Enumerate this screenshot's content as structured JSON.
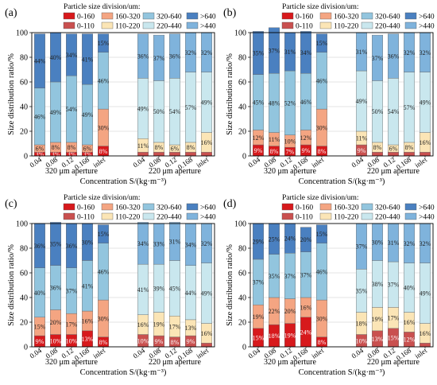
{
  "legend": {
    "title": "Particle size division/um:",
    "items": [
      {
        "label": "0-160",
        "color": "#d7191c"
      },
      {
        "label": "160-320",
        "color": "#f4a582"
      },
      {
        "label": "320-640",
        "color": "#92c5de"
      },
      {
        "label": ">640",
        "color": "#4a80c0"
      },
      {
        "label": "0-110",
        "color": "#c9504f"
      },
      {
        "label": "110-220",
        "color": "#fbe5b6"
      },
      {
        "label": "220-440",
        "color": "#c9e7ee"
      },
      {
        "label": ">440",
        "color": "#7fb3dc"
      }
    ]
  },
  "axis": {
    "ylabel": "Size distribution ratio/%",
    "xlabel": "Concentration S/(kg·m⁻³)",
    "yticks": [
      "0",
      "20",
      "40",
      "60",
      "80",
      "100"
    ],
    "group1_label": "320 μm aperture",
    "group2_label": "220 μm aperture"
  },
  "chart_data": [
    {
      "type": "bar",
      "stacked": true,
      "panel_label": "(a)",
      "ylim": [
        0,
        100
      ],
      "categories": [
        "0.04",
        "0.08",
        "0.12",
        "0.168",
        "inlet",
        "0.04",
        "0.08",
        "0.12",
        "0.168",
        "inlet"
      ],
      "groups": [
        "320 μm aperture",
        "220 μm aperture"
      ],
      "series": [
        {
          "name": "0-160",
          "color": "#d7191c",
          "values": [
            3,
            3,
            3,
            3,
            8,
            null,
            null,
            null,
            null,
            null
          ],
          "labels": [
            "3%",
            "3%",
            "3%",
            "3%",
            "8%",
            "",
            "",
            "",
            "",
            ""
          ]
        },
        {
          "name": "160-320",
          "color": "#f4a582",
          "values": [
            6,
            8,
            8,
            6,
            30,
            null,
            null,
            null,
            null,
            null
          ],
          "labels": [
            "6%",
            "8%",
            "8%",
            "6%",
            "30%",
            "",
            "",
            "",
            "",
            ""
          ]
        },
        {
          "name": "320-640",
          "color": "#92c5de",
          "values": [
            46,
            49,
            54,
            49,
            46,
            null,
            null,
            null,
            null,
            null
          ],
          "labels": [
            "46%",
            "49%",
            "54%",
            "49%",
            "46%",
            "",
            "",
            "",
            "",
            ""
          ]
        },
        {
          "name": ">640",
          "color": "#4a80c0",
          "values": [
            44,
            40,
            34,
            41,
            15,
            null,
            null,
            null,
            null,
            null
          ],
          "labels": [
            "44%",
            "40%",
            "34%",
            "41%",
            "15%",
            "",
            "",
            "",
            "",
            ""
          ]
        },
        {
          "name": "0-110",
          "color": "#c9504f",
          "values": [
            null,
            null,
            null,
            null,
            null,
            3,
            3,
            3,
            3,
            3
          ],
          "labels": [
            "",
            "",
            "",
            "",
            "",
            "",
            "",
            "",
            "",
            ""
          ]
        },
        {
          "name": "110-220",
          "color": "#fbe5b6",
          "values": [
            null,
            null,
            null,
            null,
            null,
            11,
            8,
            6,
            8,
            16
          ],
          "labels": [
            "",
            "",
            "",
            "",
            "",
            "11%",
            "8%",
            "6%",
            "8%",
            "16%"
          ]
        },
        {
          "name": "220-440",
          "color": "#c9e7ee",
          "values": [
            null,
            null,
            null,
            null,
            null,
            49,
            50,
            54,
            57,
            49
          ],
          "labels": [
            "",
            "",
            "",
            "",
            "",
            "49%",
            "50%",
            "54%",
            "57%",
            "49%"
          ]
        },
        {
          "name": ">440",
          "color": "#7fb3dc",
          "values": [
            null,
            null,
            null,
            null,
            null,
            36,
            37,
            36,
            32,
            32
          ],
          "labels": [
            "",
            "",
            "",
            "",
            "",
            "36%",
            "37%",
            "36%",
            "32%",
            "32%"
          ]
        }
      ]
    },
    {
      "type": "bar",
      "stacked": true,
      "panel_label": "(b)",
      "ylim": [
        0,
        100
      ],
      "categories": [
        "0.04",
        "0.08",
        "0.12",
        "0.168",
        "inlet",
        "0.04",
        "0.08",
        "0.12",
        "0.168",
        "inlet"
      ],
      "groups": [
        "320 μm aperture",
        "220 μm aperture"
      ],
      "series": [
        {
          "name": "0-160",
          "color": "#d7191c",
          "values": [
            9,
            8,
            7,
            9,
            8,
            null,
            null,
            null,
            null,
            null
          ],
          "labels": [
            "9%",
            "8%",
            "7%",
            "9%",
            "8%",
            "",
            "",
            "",
            "",
            ""
          ]
        },
        {
          "name": "160-320",
          "color": "#f4a582",
          "values": [
            12,
            11,
            10,
            12,
            30,
            null,
            null,
            null,
            null,
            null
          ],
          "labels": [
            "12%",
            "11%",
            "10%",
            "12%",
            "30%",
            "",
            "",
            "",
            "",
            ""
          ]
        },
        {
          "name": "320-640",
          "color": "#92c5de",
          "values": [
            45,
            48,
            52,
            46,
            46,
            null,
            null,
            null,
            null,
            null
          ],
          "labels": [
            "45%",
            "48%",
            "52%",
            "46%",
            "46%",
            "",
            "",
            "",
            "",
            ""
          ]
        },
        {
          "name": ">640",
          "color": "#4a80c0",
          "values": [
            35,
            37,
            31,
            34,
            15,
            null,
            null,
            null,
            null,
            null
          ],
          "labels": [
            "35%",
            "37%",
            "31%",
            "34%",
            "15%",
            "",
            "",
            "",
            "",
            ""
          ]
        },
        {
          "name": "0-110",
          "color": "#c9504f",
          "values": [
            null,
            null,
            null,
            null,
            null,
            9,
            3,
            3,
            3,
            3
          ],
          "labels": [
            "",
            "",
            "",
            "",
            "",
            "9%",
            "",
            "",
            "",
            ""
          ]
        },
        {
          "name": "110-220",
          "color": "#fbe5b6",
          "values": [
            null,
            null,
            null,
            null,
            null,
            11,
            8,
            6,
            8,
            16
          ],
          "labels": [
            "",
            "",
            "",
            "",
            "",
            "11%",
            "8%",
            "6%",
            "8%",
            "16%"
          ]
        },
        {
          "name": "220-440",
          "color": "#c9e7ee",
          "values": [
            null,
            null,
            null,
            null,
            null,
            49,
            50,
            54,
            57,
            49
          ],
          "labels": [
            "",
            "",
            "",
            "",
            "",
            "49%",
            "50%",
            "54%",
            "57%",
            "49%"
          ]
        },
        {
          "name": ">440",
          "color": "#7fb3dc",
          "values": [
            null,
            null,
            null,
            null,
            null,
            31,
            37,
            36,
            32,
            32
          ],
          "labels": [
            "",
            "",
            "",
            "",
            "",
            "31%",
            "37%",
            "36%",
            "32%",
            "32%"
          ]
        }
      ]
    },
    {
      "type": "bar",
      "stacked": true,
      "panel_label": "(c)",
      "ylim": [
        0,
        100
      ],
      "categories": [
        "0.04",
        "0.08",
        "0.12",
        "0.168",
        "inlet",
        "0.04",
        "0.08",
        "0.12",
        "0.168",
        "inlet"
      ],
      "groups": [
        "320 μm aperture",
        "220 μm aperture"
      ],
      "series": [
        {
          "name": "0-160",
          "color": "#d7191c",
          "values": [
            9,
            10,
            10,
            13,
            8,
            null,
            null,
            null,
            null,
            null
          ],
          "labels": [
            "9%",
            "10%",
            "10%",
            "13%",
            "8%",
            "",
            "",
            "",
            "",
            ""
          ]
        },
        {
          "name": "160-320",
          "color": "#f4a582",
          "values": [
            15,
            20,
            17,
            16,
            30,
            null,
            null,
            null,
            null,
            null
          ],
          "labels": [
            "15%",
            "20%",
            "17%",
            "16%",
            "30%",
            "",
            "",
            "",
            "",
            ""
          ]
        },
        {
          "name": "320-640",
          "color": "#92c5de",
          "values": [
            40,
            36,
            37,
            41,
            46,
            null,
            null,
            null,
            null,
            null
          ],
          "labels": [
            "40%",
            "36%",
            "37%",
            "41%",
            "46%",
            "",
            "",
            "",
            "",
            ""
          ]
        },
        {
          "name": ">640",
          "color": "#4a80c0",
          "values": [
            36,
            35,
            36,
            30,
            15,
            null,
            null,
            null,
            null,
            null
          ],
          "labels": [
            "36%",
            "35%",
            "36%",
            "30%",
            "15%",
            "",
            "",
            "",
            "",
            ""
          ]
        },
        {
          "name": "0-110",
          "color": "#c9504f",
          "values": [
            null,
            null,
            null,
            null,
            null,
            10,
            9,
            8,
            9,
            3
          ],
          "labels": [
            "",
            "",
            "",
            "",
            "",
            "10%",
            "9%",
            "8%",
            "9%",
            ""
          ]
        },
        {
          "name": "110-220",
          "color": "#fbe5b6",
          "values": [
            null,
            null,
            null,
            null,
            null,
            16,
            19,
            17,
            13,
            16
          ],
          "labels": [
            "",
            "",
            "",
            "",
            "",
            "16%",
            "19%",
            "17%",
            "13%",
            "16%"
          ]
        },
        {
          "name": "220-440",
          "color": "#c9e7ee",
          "values": [
            null,
            null,
            null,
            null,
            null,
            41,
            39,
            45,
            44,
            49
          ],
          "labels": [
            "",
            "",
            "",
            "",
            "",
            "41%",
            "39%",
            "45%",
            "44%",
            "49%"
          ]
        },
        {
          "name": ">440",
          "color": "#7fb3dc",
          "values": [
            null,
            null,
            null,
            null,
            null,
            34,
            33,
            31,
            34,
            32
          ],
          "labels": [
            "",
            "",
            "",
            "",
            "",
            "34%",
            "33%",
            "31%",
            "34%",
            "32%"
          ]
        }
      ]
    },
    {
      "type": "bar",
      "stacked": true,
      "panel_label": "(d)",
      "ylim": [
        0,
        100
      ],
      "categories": [
        "0.04",
        "0.08",
        "0.12",
        "0.168",
        "inlet",
        "0.04",
        "0.08",
        "0.12",
        "0.168",
        "inlet"
      ],
      "groups": [
        "320 μm aperture",
        "220 μm aperture"
      ],
      "series": [
        {
          "name": "0-160",
          "color": "#d7191c",
          "values": [
            15,
            18,
            19,
            24,
            8,
            null,
            null,
            null,
            null,
            null
          ],
          "labels": [
            "15%",
            "18%",
            "19%",
            "24%",
            "8%",
            "",
            "",
            "",
            "",
            ""
          ]
        },
        {
          "name": "160-320",
          "color": "#f4a582",
          "values": [
            19,
            22,
            20,
            16,
            30,
            null,
            null,
            null,
            null,
            null
          ],
          "labels": [
            "19%",
            "22%",
            "20%",
            "16%",
            "30%",
            "",
            "",
            "",
            "",
            ""
          ]
        },
        {
          "name": "320-640",
          "color": "#92c5de",
          "values": [
            37,
            35,
            37,
            37,
            46,
            null,
            null,
            null,
            null,
            null
          ],
          "labels": [
            "37%",
            "35%",
            "37%",
            "37%",
            "46%",
            "",
            "",
            "",
            "",
            ""
          ]
        },
        {
          "name": ">640",
          "color": "#4a80c0",
          "values": [
            29,
            25,
            24,
            20,
            15,
            null,
            null,
            null,
            null,
            null
          ],
          "labels": [
            "29%",
            "25%",
            "24%",
            "20%",
            "15%",
            "",
            "",
            "",
            "",
            ""
          ]
        },
        {
          "name": "0-110",
          "color": "#c9504f",
          "values": [
            null,
            null,
            null,
            null,
            null,
            10,
            13,
            15,
            12,
            3
          ],
          "labels": [
            "",
            "",
            "",
            "",
            "",
            "10%",
            "13%",
            "15%",
            "12%",
            ""
          ]
        },
        {
          "name": "110-220",
          "color": "#fbe5b6",
          "values": [
            null,
            null,
            null,
            null,
            null,
            18,
            19,
            17,
            16,
            16
          ],
          "labels": [
            "",
            "",
            "",
            "",
            "",
            "18%",
            "19%",
            "17%",
            "16%",
            "16%"
          ]
        },
        {
          "name": "220-440",
          "color": "#c9e7ee",
          "values": [
            null,
            null,
            null,
            null,
            null,
            35,
            38,
            37,
            40,
            49
          ],
          "labels": [
            "",
            "",
            "",
            "",
            "",
            "35%",
            "38%",
            "37%",
            "40%",
            "49%"
          ]
        },
        {
          "name": ">440",
          "color": "#7fb3dc",
          "values": [
            null,
            null,
            null,
            null,
            null,
            37,
            30,
            31,
            32,
            32
          ],
          "labels": [
            "",
            "",
            "",
            "",
            "",
            "37%",
            "30%",
            "31%",
            "32%",
            "32%"
          ]
        }
      ]
    }
  ]
}
